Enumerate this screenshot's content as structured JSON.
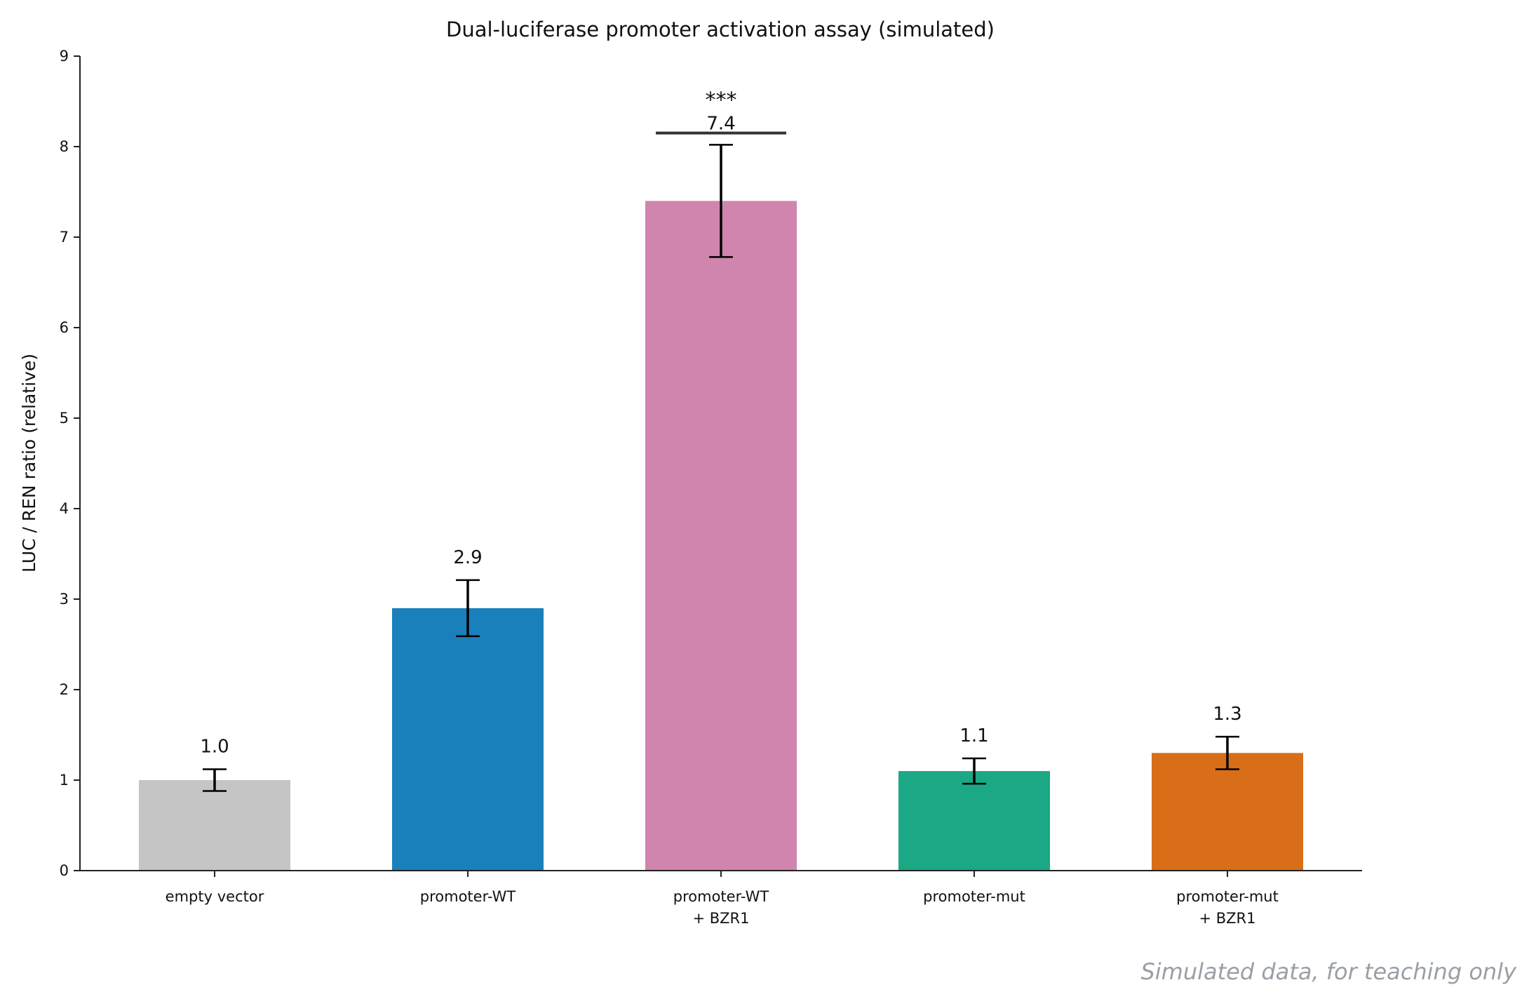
{
  "chart_data": {
    "type": "bar",
    "title": "Dual-luciferase promoter activation assay (simulated)",
    "xlabel": "",
    "ylabel": "LUC / REN ratio (relative)",
    "ylim": [
      0,
      9
    ],
    "yticks": [
      0,
      1,
      2,
      3,
      4,
      5,
      6,
      7,
      8,
      9
    ],
    "grid": false,
    "categories": [
      [
        "empty vector"
      ],
      [
        "promoter-WT"
      ],
      [
        "promoter-WT",
        "+ BZR1"
      ],
      [
        "promoter-mut"
      ],
      [
        "promoter-mut",
        "+ BZR1"
      ]
    ],
    "values": [
      1.0,
      2.9,
      7.4,
      1.1,
      1.3
    ],
    "errors": [
      0.12,
      0.31,
      0.62,
      0.14,
      0.18
    ],
    "data_labels": [
      "1.0",
      "2.9",
      "7.4",
      "1.1",
      "1.3"
    ],
    "colors": [
      "#c5c5c5",
      "#1a80bb",
      "#d085ae",
      "#1ba884",
      "#d96e19"
    ],
    "significance": {
      "category_index": 2,
      "label": "***",
      "bracket_y": 8.15
    },
    "annotation": "Simulated data, for teaching only"
  }
}
